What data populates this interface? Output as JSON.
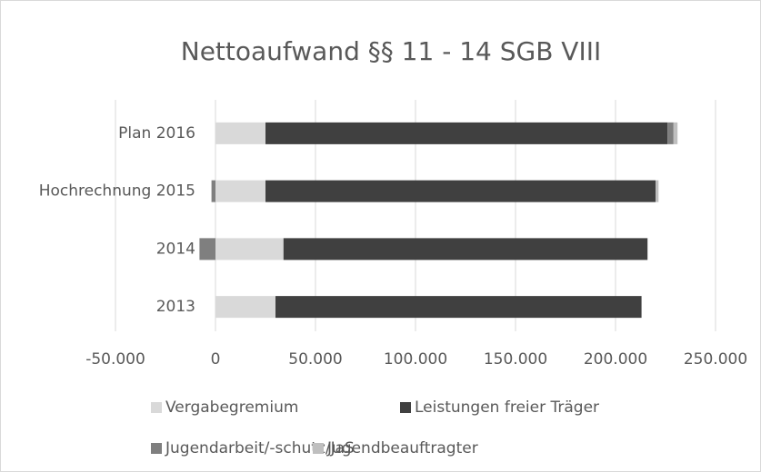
{
  "chart_data": {
    "type": "stacked-barh",
    "title": "Nettoaufwand §§ 11 - 14 SGB VIII",
    "categories": [
      "Plan 2016",
      "Hochrechnung 2015",
      "2014",
      "2013"
    ],
    "series": [
      {
        "name": "Vergabegremium",
        "color": "#d9d9d9",
        "values": [
          25000,
          25000,
          34000,
          30000
        ]
      },
      {
        "name": "Leistungen freier Träger",
        "color": "#404040",
        "values": [
          201000,
          195000,
          182000,
          183000
        ]
      },
      {
        "name": "Jugendarbeit/-schutz/JaS",
        "color": "#7f7f7f",
        "values": [
          3000,
          -2000,
          -8000,
          0
        ]
      },
      {
        "name": "Jugendbeauftragter",
        "color": "#bfbfbf",
        "values": [
          2000,
          1500,
          0,
          0
        ]
      }
    ],
    "xlim": [
      -50000,
      250000
    ],
    "xticks": [
      {
        "value": -50000,
        "label": "-50.000"
      },
      0,
      {
        "value": 50000,
        "label": "50.000"
      },
      {
        "value": 100000,
        "label": "100.000"
      },
      {
        "value": 150000,
        "label": "150.000"
      },
      {
        "value": 200000,
        "label": "200.000"
      },
      {
        "value": 250000,
        "label": "250.000"
      }
    ],
    "grid": true,
    "legend": "bottom"
  }
}
